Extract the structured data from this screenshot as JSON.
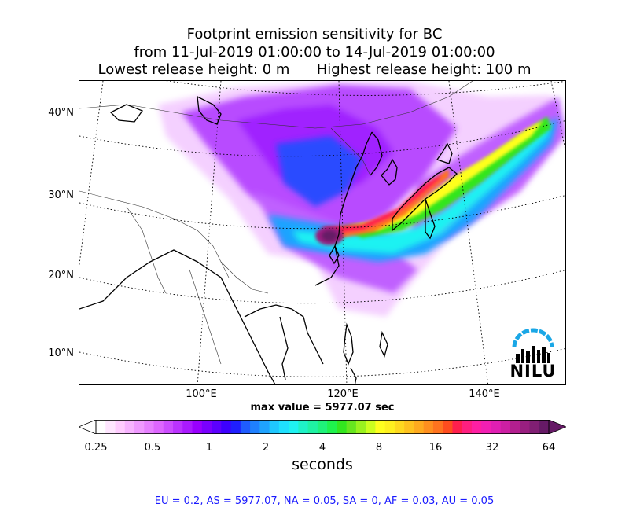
{
  "title": {
    "line1": "Footprint emission sensitivity for BC",
    "line2": "from 11-Jul-2019 01:00:00 to 14-Jul-2019 01:00:00",
    "line3": "Lowest release height: 0 m      Highest release height: 100 m"
  },
  "map": {
    "lat_labels": [
      "40°N",
      "30°N",
      "20°N",
      "10°N"
    ],
    "lon_labels": [
      "100°E",
      "120°E",
      "140°E"
    ],
    "logo_text": "NILU",
    "logo_color": "#1aa7e6"
  },
  "max_value_label": "max value = 5977.07 sec",
  "colorbar": {
    "tick_labels": [
      "0.25",
      "0.5",
      "1",
      "2",
      "4",
      "8",
      "16",
      "32",
      "64"
    ],
    "units": "seconds",
    "colors": [
      "#ffffff",
      "#ffe6ff",
      "#ffccff",
      "#f7b3ff",
      "#ef99ff",
      "#e680ff",
      "#dd66ff",
      "#cc4dff",
      "#bb33ff",
      "#aa1aff",
      "#9900ff",
      "#7a00ff",
      "#5c00ff",
      "#3d00ff",
      "#1f1fff",
      "#1f5cff",
      "#1f80ff",
      "#1fa3ff",
      "#1fc7ff",
      "#1fe0ff",
      "#1ff2f2",
      "#1ff2c7",
      "#1ff2a3",
      "#1ff27a",
      "#1ff24d",
      "#33e61f",
      "#66e61f",
      "#99f21f",
      "#ccff1f",
      "#ffff1f",
      "#fff01f",
      "#ffd91f",
      "#ffc21f",
      "#ffaa1f",
      "#ff8f1f",
      "#ff731f",
      "#ff4d1f",
      "#ff1f4d",
      "#ff1f80",
      "#ff1fa3",
      "#f21fb3",
      "#e01fb3",
      "#cc1fa3",
      "#b31f8f",
      "#991f80",
      "#801f73",
      "#661a66"
    ]
  },
  "region_summary": "EU = 0.2,  AS = 5977.07,  NA = 0.05,  SA = 0,  AF = 0.03,  AU = 0.05"
}
